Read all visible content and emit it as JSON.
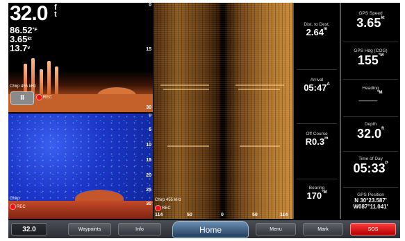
{
  "chirp_pane": {
    "depth_value": "32.0",
    "depth_unit_top": "f",
    "depth_unit_bottom": "t",
    "temp": "86.52",
    "temp_unit": "°F",
    "speed": "3.65",
    "speed_unit": "kt",
    "voltage": "13.7",
    "voltage_unit": "v",
    "frequency": "Chirp 455 kHz",
    "pause_label": "II",
    "rec_label": "REC",
    "scale_ticks": [
      "0",
      "15",
      "30"
    ]
  },
  "downscan_pane": {
    "scale_ticks": [
      "0",
      "5",
      "10",
      "15",
      "20",
      "25",
      "30"
    ],
    "label": "Chirp",
    "rec_label": "REC"
  },
  "sidescan_pane": {
    "frequency": "Chirp 455 kHz",
    "rec_label": "REC",
    "range_ticks": [
      "114",
      "50",
      "0",
      "50",
      "114"
    ]
  },
  "data_mid": [
    {
      "label": "Dist. to Dest.",
      "value": "2.64",
      "unit": "m"
    },
    {
      "label": "Arrival",
      "value": "05:47",
      "unit": "A"
    },
    {
      "label": "Off Course",
      "value": "R0.3",
      "unit": "m"
    },
    {
      "label": "Bearing",
      "value": "170",
      "unit": "°M"
    }
  ],
  "data_right": [
    {
      "label": "GPS Speed",
      "value": "3.65",
      "unit": "kt"
    },
    {
      "label": "GPS Hdg (COG)",
      "value": "155",
      "unit": "°M"
    },
    {
      "label": "Heading",
      "value": "___",
      "unit": "°M"
    },
    {
      "label": "Depth",
      "value": "32.0",
      "unit": "ft"
    },
    {
      "label": "Time of Day",
      "value": "05:33",
      "unit": "P"
    },
    {
      "label": "GPS Position",
      "value": "N  30°23.587'",
      "value2": "W087°11.041'"
    }
  ],
  "toolbar": {
    "depth": "32.0",
    "waypoints": "Waypoints",
    "info": "Info",
    "home": "Home",
    "menu": "Menu",
    "mark": "Mark",
    "sos": "SOS"
  },
  "colors": {
    "sos": "#e00000",
    "home_accent": "#4a6f94",
    "downscan": "#1c37c9",
    "chirp_bottom": "#c4612a"
  }
}
